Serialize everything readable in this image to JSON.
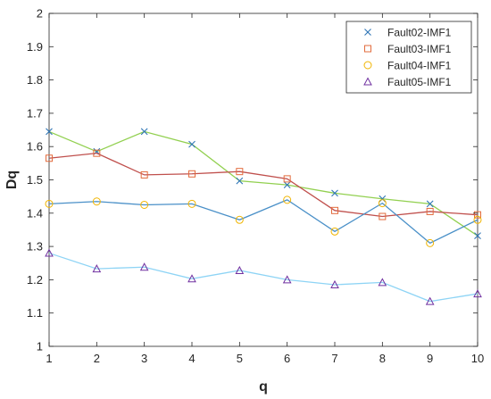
{
  "chart_data": {
    "type": "line",
    "title": "",
    "xlabel": "q",
    "ylabel": "Dq",
    "xlim": [
      1,
      10
    ],
    "ylim": [
      1,
      2
    ],
    "xticks": [
      "1",
      "2",
      "3",
      "4",
      "5",
      "6",
      "7",
      "8",
      "9",
      "10"
    ],
    "yticks": [
      "1",
      "1.1",
      "1.2",
      "1.3",
      "1.4",
      "1.5",
      "1.6",
      "1.7",
      "1.8",
      "1.9",
      "2"
    ],
    "grid": false,
    "legend_position": "top-right",
    "x": [
      1,
      2,
      3,
      4,
      5,
      6,
      7,
      8,
      9,
      10
    ],
    "series": [
      {
        "name": "Fault02-IMF1",
        "line_color": "#92d050",
        "marker": "x",
        "marker_color": "#2e75b6",
        "values": [
          1.645,
          1.585,
          1.645,
          1.607,
          1.497,
          1.485,
          1.46,
          1.443,
          1.428,
          1.332
        ]
      },
      {
        "name": "Fault03-IMF1",
        "line_color": "#c0504d",
        "marker": "square",
        "marker_color": "#e26b3c",
        "values": [
          1.565,
          1.58,
          1.515,
          1.518,
          1.525,
          1.503,
          1.408,
          1.39,
          1.405,
          1.395
        ]
      },
      {
        "name": "Fault04-IMF1",
        "line_color": "#4a90c8",
        "marker": "circle",
        "marker_color": "#f0b400",
        "values": [
          1.428,
          1.435,
          1.425,
          1.428,
          1.38,
          1.44,
          1.345,
          1.43,
          1.31,
          1.38
        ]
      },
      {
        "name": "Fault05-IMF1",
        "line_color": "#8ed4f5",
        "marker": "triangle",
        "marker_color": "#7030a0",
        "values": [
          1.28,
          1.233,
          1.238,
          1.203,
          1.228,
          1.2,
          1.185,
          1.192,
          1.135,
          1.158
        ]
      }
    ]
  }
}
